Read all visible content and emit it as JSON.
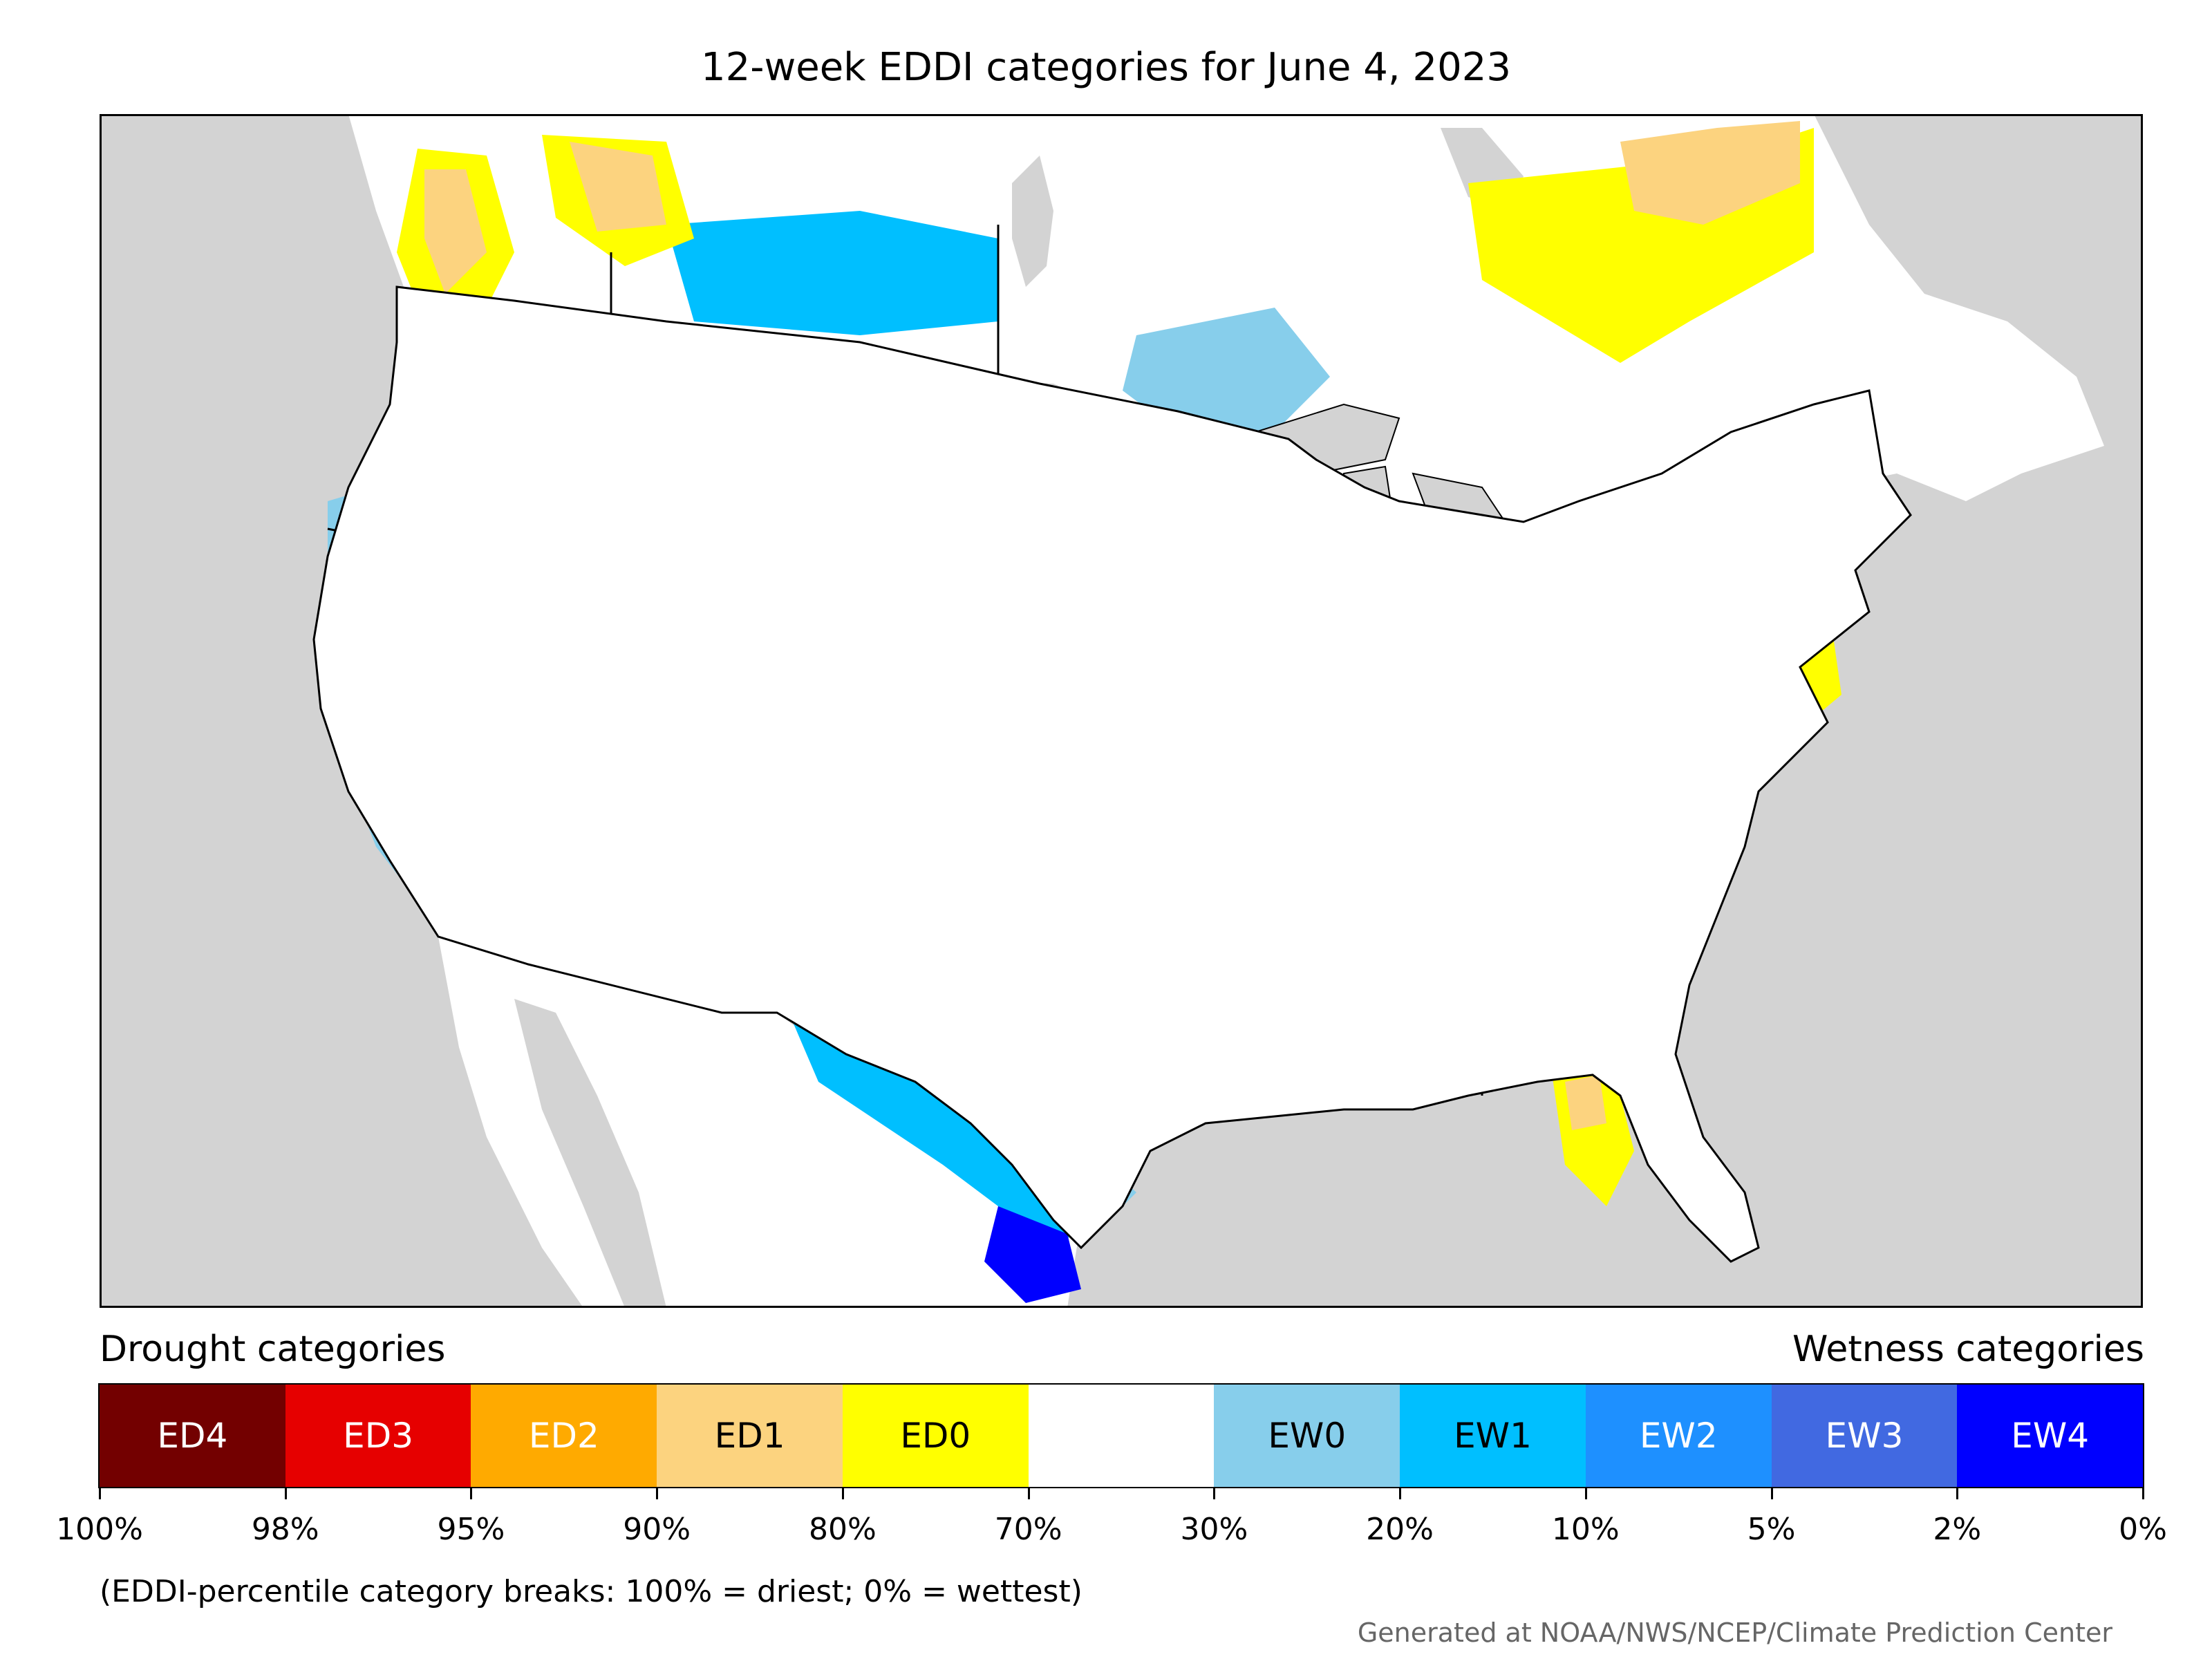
{
  "title": "12-week EDDI categories for June 4, 2023",
  "map": {
    "region": "Contiguous United States with parts of Canada and Mexico",
    "colors": {
      "land_outside": "#d3d3d3",
      "water": "#d3d3d3",
      "boundaries": "#000000"
    }
  },
  "legend": {
    "drought_heading": "Drought categories",
    "wetness_heading": "Wetness categories",
    "categories": [
      {
        "label": "ED4",
        "color": "#730000",
        "text_color": "#ffffff"
      },
      {
        "label": "ED3",
        "color": "#e60000",
        "text_color": "#ffffff"
      },
      {
        "label": "ED2",
        "color": "#ffaa00",
        "text_color": "#ffffff"
      },
      {
        "label": "ED1",
        "color": "#fcd37f",
        "text_color": "#000000"
      },
      {
        "label": "ED0",
        "color": "#ffff00",
        "text_color": "#000000"
      },
      {
        "label": "",
        "color": "#ffffff",
        "text_color": "#000000"
      },
      {
        "label": "EW0",
        "color": "#87ceeb",
        "text_color": "#000000"
      },
      {
        "label": "EW1",
        "color": "#00bfff",
        "text_color": "#000000"
      },
      {
        "label": "EW2",
        "color": "#1e90ff",
        "text_color": "#ffffff"
      },
      {
        "label": "EW3",
        "color": "#4169e1",
        "text_color": "#ffffff"
      },
      {
        "label": "EW4",
        "color": "#0000ff",
        "text_color": "#ffffff"
      }
    ],
    "ticks": [
      "100%",
      "98%",
      "95%",
      "90%",
      "80%",
      "70%",
      "30%",
      "20%",
      "10%",
      "5%",
      "2%",
      "0%"
    ]
  },
  "note": "(EDDI-percentile category breaks: 100% = driest; 0% = wettest)",
  "credit": "Generated at NOAA/NWS/NCEP/Climate Prediction Center"
}
